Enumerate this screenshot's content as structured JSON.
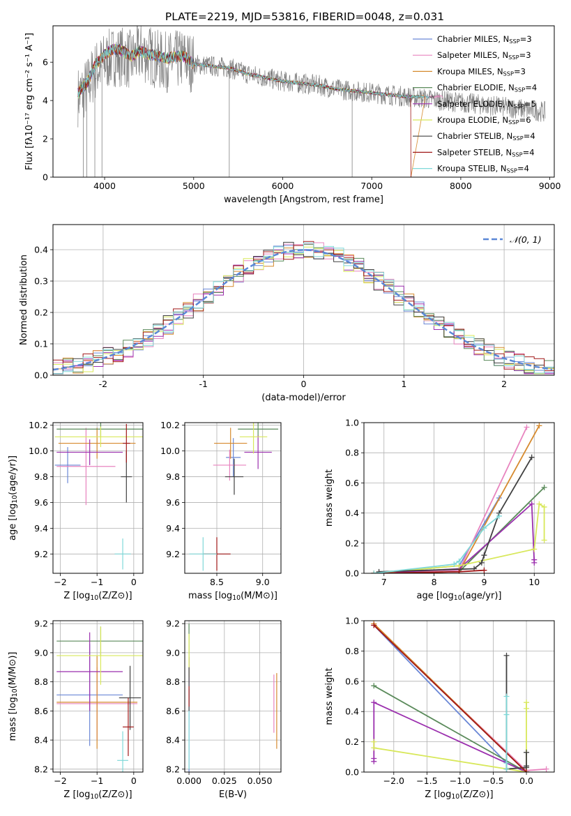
{
  "title": "PLATE=2219, MJD=53816, FIBERID=0048, z=0.031",
  "series_colors": [
    "#6a87d6",
    "#e884bf",
    "#d68a2e",
    "#5a8a5a",
    "#9b2fae",
    "#d8e85a",
    "#404040",
    "#a01818",
    "#7fd8d8"
  ],
  "legend": [
    {
      "base": "Chabrier MILES, N",
      "sub": "SSP",
      "tail": "=3"
    },
    {
      "base": "Salpeter MILES, N",
      "sub": "SSP",
      "tail": "=3"
    },
    {
      "base": "Kroupa MILES, N",
      "sub": "SSP",
      "tail": "=3"
    },
    {
      "base": "Chabrier ELODIE, N",
      "sub": "SSP",
      "tail": "=4"
    },
    {
      "base": "Salpeter ELODIE, N",
      "sub": "SSP",
      "tail": "=5"
    },
    {
      "base": "Kroupa ELODIE, N",
      "sub": "SSP",
      "tail": "=6"
    },
    {
      "base": "Chabrier STELIB, N",
      "sub": "SSP",
      "tail": "=4"
    },
    {
      "base": "Salpeter STELIB, N",
      "sub": "SSP",
      "tail": "=4"
    },
    {
      "base": "Kroupa STELIB, N",
      "sub": "SSP",
      "tail": "=4"
    }
  ],
  "chart_data": [
    {
      "type": "line",
      "xlabel": "wavelength [Angstrom, rest frame]",
      "ylabel": "Flux [fλ10⁻¹⁷ erg cm⁻² s⁻¹ A⁻¹]",
      "xlim": [
        3420,
        9050
      ],
      "ylim": [
        0,
        7.9
      ],
      "xticks": [
        4000,
        5000,
        6000,
        7000,
        8000,
        9000
      ],
      "yticks": [
        0,
        2,
        4,
        6
      ],
      "legend_position": "upper-right",
      "data_color": "#808080",
      "data_envelope": {
        "x": [
          3700,
          3800,
          3900,
          4000,
          4100,
          4200,
          4300,
          4400,
          4500,
          4600,
          4700,
          4800,
          4900,
          5000,
          5200,
          5400,
          5600,
          5800,
          6000,
          6200,
          6400,
          6600,
          6800,
          7000,
          7200,
          7400,
          7600,
          7800,
          8000,
          8200,
          8400,
          8600,
          8800,
          8950
        ],
        "y": [
          4.2,
          4.7,
          5.6,
          6.0,
          6.3,
          6.3,
          6.1,
          6.5,
          6.4,
          6.1,
          6.0,
          6.1,
          6.2,
          5.9,
          5.8,
          5.7,
          5.4,
          5.2,
          5.0,
          4.9,
          4.8,
          4.6,
          4.5,
          4.4,
          4.3,
          4.2,
          4.1,
          4.0,
          3.9,
          3.8,
          3.7,
          3.6,
          3.5,
          3.4
        ]
      },
      "model_lines": {
        "x": [
          3700,
          3800,
          3900,
          4000,
          4100,
          4200,
          4300,
          4400,
          4500,
          4600,
          4700,
          4800,
          4900,
          5000,
          5200,
          5400,
          5600,
          5800,
          6000,
          6200,
          6400,
          6600,
          6800,
          7000,
          7200,
          7400
        ],
        "y": [
          4.4,
          4.9,
          5.9,
          6.4,
          6.7,
          6.6,
          6.3,
          6.6,
          6.4,
          6.3,
          6.2,
          6.3,
          6.3,
          5.9,
          5.8,
          5.7,
          5.4,
          5.2,
          5.0,
          4.9,
          4.8,
          4.6,
          4.5,
          4.4,
          4.3,
          4.2
        ],
        "cutoff_x": [
          7420,
          7800,
          7600,
          7520,
          7450,
          7380,
          7700,
          7440,
          7650
        ],
        "cutoff_end_x": 7440
      }
    },
    {
      "type": "histogram",
      "xlabel": "(data-model)/error",
      "ylabel": "Normed distribution",
      "xlim": [
        -2.5,
        2.5
      ],
      "ylim": [
        0,
        0.48
      ],
      "xticks": [
        -2,
        -1,
        0,
        1,
        2
      ],
      "yticks": [
        0.0,
        0.1,
        0.2,
        0.3,
        0.4
      ],
      "bin_edges_range": [
        -2.5,
        2.5
      ],
      "bin_count": 50,
      "reference_curve": {
        "name": "𝒩(0, 1)",
        "mean": 0,
        "sigma": 1
      },
      "legend_position": "upper-right"
    },
    {
      "type": "scatter",
      "xlabel_base": "Z [log",
      "xlabel_sub": "10",
      "xlabel_tail": "(Z/Z⊙)]",
      "ylabel_base": "age  [log",
      "ylabel_sub": "10",
      "ylabel_tail": "(age/yr)]",
      "xlim": [
        -2.2,
        0.25
      ],
      "ylim": [
        9.05,
        10.22
      ],
      "xticks": [
        -2,
        -1,
        0
      ],
      "yticks": [
        9.2,
        9.4,
        9.6,
        9.8,
        10.0,
        10.2
      ],
      "points": [
        {
          "x": -1.8,
          "y": 9.89,
          "xerr": 0.35,
          "yerr": 0.14,
          "series": 0
        },
        {
          "x": -1.3,
          "y": 9.88,
          "xerr": 0.8,
          "yerr": 0.3,
          "series": 1
        },
        {
          "x": -1.0,
          "y": 10.06,
          "xerr": 1.05,
          "yerr": 0.12,
          "series": 2
        },
        {
          "x": -0.9,
          "y": 10.17,
          "xerr": 1.2,
          "yerr": 0.06,
          "series": 3
        },
        {
          "x": -1.2,
          "y": 9.99,
          "xerr": 0.9,
          "yerr": 0.1,
          "series": 4
        },
        {
          "x": -0.9,
          "y": 10.11,
          "xerr": 1.25,
          "yerr": 0.08,
          "series": 5
        },
        {
          "x": -0.2,
          "y": 9.8,
          "xerr": 0.15,
          "yerr": 0.2,
          "series": 6
        },
        {
          "x": -0.2,
          "y": 10.06,
          "xerr": 0.1,
          "yerr": 0.15,
          "series": 7
        },
        {
          "x": -0.3,
          "y": 9.2,
          "xerr": 0.22,
          "yerr": 0.12,
          "series": 8
        }
      ]
    },
    {
      "type": "scatter",
      "xlabel_base": "mass [log",
      "xlabel_sub": "10",
      "xlabel_tail": "(M/M⊙)]",
      "xlim": [
        8.15,
        9.2
      ],
      "ylim": [
        9.05,
        10.22
      ],
      "xticks": [
        8.5,
        9.0
      ],
      "yticks": [
        9.2,
        9.4,
        9.6,
        9.8,
        10.0,
        10.2
      ],
      "points": [
        {
          "x": 8.68,
          "y": 9.95,
          "xerr": 0.08,
          "yerr": 0.15,
          "series": 0
        },
        {
          "x": 8.64,
          "y": 9.89,
          "xerr": 0.18,
          "yerr": 0.12,
          "series": 1
        },
        {
          "x": 8.65,
          "y": 10.06,
          "xerr": 0.18,
          "yerr": 0.12,
          "series": 2
        },
        {
          "x": 8.95,
          "y": 10.17,
          "xerr": 0.22,
          "yerr": 0.06,
          "series": 3
        },
        {
          "x": 8.95,
          "y": 9.99,
          "xerr": 0.15,
          "yerr": 0.13,
          "series": 4
        },
        {
          "x": 8.9,
          "y": 10.11,
          "xerr": 0.15,
          "yerr": 0.13,
          "series": 5
        },
        {
          "x": 8.69,
          "y": 9.8,
          "xerr": 0.1,
          "yerr": 0.14,
          "series": 6
        },
        {
          "x": 8.5,
          "y": 9.2,
          "xerr": 0.15,
          "yerr": 0.13,
          "series": 7
        },
        {
          "x": 8.35,
          "y": 9.2,
          "xerr": 0.15,
          "yerr": 0.13,
          "series": 8
        }
      ]
    },
    {
      "type": "line",
      "xlabel_base": "age  [log",
      "xlabel_sub": "10",
      "xlabel_tail": "(age/yr)]",
      "ylabel": "mass weight",
      "xlim": [
        6.6,
        10.4
      ],
      "ylim": [
        0,
        1
      ],
      "xticks": [
        7,
        8,
        9,
        10
      ],
      "yticks": [
        0.0,
        0.2,
        0.4,
        0.6,
        0.8,
        1.0
      ],
      "series": [
        {
          "series": 0,
          "x": [
            6.8,
            8.5,
            9.3
          ],
          "y": [
            0.0,
            0.05,
            0.5
          ]
        },
        {
          "series": 1,
          "x": [
            6.8,
            8.5,
            9.85
          ],
          "y": [
            0.0,
            0.02,
            0.97
          ]
        },
        {
          "series": 2,
          "x": [
            6.8,
            8.5,
            10.1
          ],
          "y": [
            0.0,
            0.01,
            0.98
          ]
        },
        {
          "series": 3,
          "x": [
            6.8,
            8.5,
            10.2
          ],
          "y": [
            0.0,
            0.01,
            0.57
          ]
        },
        {
          "series": 4,
          "x": [
            6.9,
            8.5,
            9.95,
            10.0,
            10.0
          ],
          "y": [
            0.0,
            0.03,
            0.46,
            0.07,
            0.09
          ]
        },
        {
          "series": 5,
          "x": [
            6.8,
            8.5,
            10.0,
            10.1,
            10.2,
            10.2
          ],
          "y": [
            0.0,
            0.05,
            0.16,
            0.46,
            0.44,
            0.22
          ]
        },
        {
          "series": 6,
          "x": [
            6.9,
            8.8,
            8.95,
            9.0,
            9.3,
            9.95
          ],
          "y": [
            0.01,
            0.03,
            0.07,
            0.12,
            0.4,
            0.77
          ]
        },
        {
          "series": 7,
          "x": [
            6.8,
            8.5,
            9.0
          ],
          "y": [
            0.0,
            0.01,
            0.02
          ]
        },
        {
          "series": 8,
          "x": [
            6.8,
            8.4,
            8.5,
            9.0,
            9.3
          ],
          "y": [
            0.0,
            0.06,
            0.08,
            0.3,
            0.38
          ]
        }
      ]
    },
    {
      "type": "scatter",
      "xlabel_base": "Z [log",
      "xlabel_sub": "10",
      "xlabel_tail": "(Z/Z⊙)]",
      "ylabel_base": "mass [log",
      "ylabel_sub": "10",
      "ylabel_tail": "(M/M⊙)]",
      "xlim": [
        -2.2,
        0.25
      ],
      "ylim": [
        8.18,
        9.22
      ],
      "xticks": [
        -2,
        -1,
        0
      ],
      "yticks": [
        8.2,
        8.4,
        8.6,
        8.8,
        9.0,
        9.2
      ],
      "points": [
        {
          "x": -1.2,
          "y": 8.71,
          "xerr": 0.9,
          "yerr": 0.35,
          "series": 0
        },
        {
          "x": -1.0,
          "y": 8.65,
          "xerr": 1.1,
          "yerr": 0.25,
          "series": 1
        },
        {
          "x": -1.0,
          "y": 8.66,
          "xerr": 1.1,
          "yerr": 0.32,
          "series": 2
        },
        {
          "x": -0.9,
          "y": 9.08,
          "xerr": 1.2,
          "yerr": 0.1,
          "series": 3
        },
        {
          "x": -1.2,
          "y": 8.87,
          "xerr": 0.9,
          "yerr": 0.27,
          "series": 4
        },
        {
          "x": -0.9,
          "y": 8.98,
          "xerr": 1.2,
          "yerr": 0.2,
          "series": 5
        },
        {
          "x": -0.1,
          "y": 8.69,
          "xerr": 0.3,
          "yerr": 0.22,
          "series": 6
        },
        {
          "x": -0.15,
          "y": 8.49,
          "xerr": 0.15,
          "yerr": 0.2,
          "series": 7
        },
        {
          "x": -0.3,
          "y": 8.26,
          "xerr": 0.15,
          "yerr": 0.2,
          "series": 8
        }
      ]
    },
    {
      "type": "scatter",
      "xlabel": "E(B-V)",
      "xlim": [
        -0.003,
        0.065
      ],
      "ylim": [
        8.18,
        9.22
      ],
      "xticks": [
        0.0,
        0.025,
        0.05
      ],
      "yticks": [
        8.2,
        8.4,
        8.6,
        8.8,
        9.0,
        9.2
      ],
      "points": [
        {
          "x": 0.0,
          "y": 8.45,
          "yerr": 0.3,
          "series": 0
        },
        {
          "x": 0.06,
          "y": 8.65,
          "yerr": 0.2,
          "series": 1
        },
        {
          "x": 0.062,
          "y": 8.6,
          "yerr": 0.26,
          "series": 2
        },
        {
          "x": 0.0,
          "y": 9.05,
          "yerr": 0.15,
          "series": 3
        },
        {
          "x": 0.0,
          "y": 8.87,
          "yerr": 0.1,
          "series": 4
        },
        {
          "x": 0.0,
          "y": 8.98,
          "yerr": 0.15,
          "series": 5
        },
        {
          "x": 0.0,
          "y": 8.75,
          "yerr": 0.15,
          "series": 6
        },
        {
          "x": 0.0,
          "y": 8.7,
          "yerr": 0.07,
          "series": 7
        },
        {
          "x": 0.0,
          "y": 8.4,
          "yerr": 0.2,
          "series": 8
        }
      ]
    },
    {
      "type": "line",
      "xlabel_base": "Z [log",
      "xlabel_sub": "10",
      "xlabel_tail": "(Z/Z⊙)]",
      "ylabel": "mass weight",
      "xlim": [
        -2.45,
        0.42
      ],
      "ylim": [
        0,
        1
      ],
      "xticks": [
        -2.0,
        -1.5,
        -1.0,
        -0.5,
        0.0
      ],
      "yticks": [
        0.0,
        0.2,
        0.4,
        0.6,
        0.8,
        1.0
      ],
      "series": [
        {
          "series": 0,
          "x": [
            -2.3,
            -0.3,
            0.0
          ],
          "y": [
            0.97,
            0.06,
            0.0
          ]
        },
        {
          "series": 1,
          "x": [
            -2.3,
            0.0,
            0.3
          ],
          "y": [
            0.97,
            0.01,
            0.02
          ]
        },
        {
          "series": 2,
          "x": [
            -2.3,
            0.0
          ],
          "y": [
            0.98,
            0.0
          ]
        },
        {
          "series": 3,
          "x": [
            -2.3,
            0.0
          ],
          "y": [
            0.57,
            0.0
          ]
        },
        {
          "series": 4,
          "x": [
            -2.3,
            -2.3,
            -2.3,
            0.0
          ],
          "y": [
            0.07,
            0.09,
            0.46,
            0.0
          ]
        },
        {
          "series": 5,
          "x": [
            -2.3,
            -2.3,
            0.0,
            0.0,
            0.0
          ],
          "y": [
            0.2,
            0.16,
            0.0,
            0.46,
            0.42
          ]
        },
        {
          "series": 6,
          "x": [
            -0.3,
            -0.3,
            0.0,
            0.0,
            0.0
          ],
          "y": [
            0.77,
            0.02,
            0.03,
            0.13,
            0.04
          ]
        },
        {
          "series": 7,
          "x": [
            -2.3,
            0.0
          ],
          "y": [
            0.97,
            0.0
          ]
        },
        {
          "series": 8,
          "x": [
            -0.3,
            -0.3,
            -0.3,
            -0.3
          ],
          "y": [
            0.02,
            0.38,
            0.5,
            0.06
          ]
        }
      ]
    }
  ]
}
